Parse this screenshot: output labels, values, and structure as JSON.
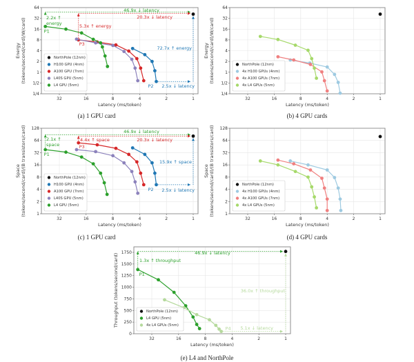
{
  "colors": {
    "northpole": "#111111",
    "h100": "#1f77b4",
    "a100": "#d62728",
    "l40s": "#8c82bc",
    "l4": "#2ca02c",
    "h100_4x": "#9ecae1",
    "a100_4x": "#f08080",
    "l4_4x": "#a6d96a",
    "l4_4x_e": "#b5d99c"
  },
  "chart_data": [
    {
      "id": "a",
      "type": "line",
      "caption": "(a) 1 GPU card",
      "xlabel": "Latency (ms/token)",
      "ylabel": "Energy\n(tokens/second/card)/W/card)",
      "ylabel_lines": [
        "Energy",
        "(tokens/second/card)/W/card)"
      ],
      "xscale": "log2-reversed",
      "yscale": "log2",
      "xlim": [
        48,
        0.9
      ],
      "ylim": [
        0.25,
        64
      ],
      "xticks": [
        {
          "v": 32,
          "label": "32"
        },
        {
          "v": 16,
          "label": "16"
        },
        {
          "v": 8,
          "label": "8"
        },
        {
          "v": 4,
          "label": "4"
        },
        {
          "v": 2,
          "label": "2"
        },
        {
          "v": 1,
          "label": "1"
        }
      ],
      "yticks": [
        {
          "v": 0.25,
          "label": "1/4"
        },
        {
          "v": 0.5,
          "label": "1/2"
        },
        {
          "v": 1,
          "label": "1"
        },
        {
          "v": 2,
          "label": "2"
        },
        {
          "v": 4,
          "label": "4"
        },
        {
          "v": 8,
          "label": "8"
        },
        {
          "v": 16,
          "label": "16"
        },
        {
          "v": 32,
          "label": "32"
        },
        {
          "v": 64,
          "label": "64"
        }
      ],
      "grid": true,
      "legend_position": "lower-left",
      "series": [
        {
          "name": "NorthPole (12nm)",
          "color": "northpole",
          "x": [
            1.0
          ],
          "y": [
            42
          ]
        },
        {
          "name": "H100 GPU (4nm)",
          "color": "h100",
          "x": [
            4.8,
            3.5,
            2.9,
            2.7,
            2.6
          ],
          "y": [
            4.6,
            3.1,
            2.0,
            1.1,
            0.55
          ]
        },
        {
          "name": "A100 GPU (7nm)",
          "color": "a100",
          "x": [
            19.5,
            12.0,
            7.4,
            5.3,
            4.3,
            3.9,
            3.6
          ],
          "y": [
            8.0,
            7.0,
            5.8,
            3.9,
            2.4,
            1.3,
            0.58
          ]
        },
        {
          "name": "L40S GPU (5nm)",
          "color": "l40s",
          "x": [
            20.5,
            12.5,
            8.0,
            6.0,
            4.9,
            4.5,
            4.2
          ],
          "y": [
            8.4,
            6.6,
            5.6,
            3.8,
            2.3,
            1.3,
            0.58
          ]
        },
        {
          "name": "L4 GPU   (5nm)",
          "color": "l4",
          "x": [
            46,
            27,
            18,
            13.3,
            11.0,
            10.5,
            9.8,
            9.2
          ],
          "y": [
            19,
            16,
            12.5,
            8.3,
            6.6,
            5.1,
            2.85,
            1.45
          ]
        }
      ],
      "annotations": [
        {
          "text": "46.9x ↓ latency",
          "color": "l4",
          "anchor": "top-center"
        },
        {
          "text": "20.3x ↓ latency",
          "color": "a100",
          "anchor": "top-right"
        },
        {
          "text": "2.2x ↑",
          "color": "l4"
        },
        {
          "text": "energy",
          "color": "l4"
        },
        {
          "text": "5.3x ↑ energy",
          "color": "a100"
        },
        {
          "text": "72.7x ↑ energy",
          "color": "h100"
        },
        {
          "text": "2.5x ↓ latency",
          "color": "h100"
        }
      ],
      "point_labels": [
        {
          "text": "P1",
          "color": "l4"
        },
        {
          "text": "P2",
          "color": "h100"
        },
        {
          "text": "P3",
          "color": "a100"
        }
      ]
    },
    {
      "id": "b",
      "type": "line",
      "caption": "(b) 4 GPU cards",
      "xlabel": "Latency (ms/token)",
      "ylabel_lines": [
        "Energy",
        "(tokens/second/card)/W/card)"
      ],
      "xscale": "log2-reversed",
      "yscale": "log2",
      "xlim": [
        48,
        0.9
      ],
      "ylim": [
        0.25,
        64
      ],
      "xticks": [
        {
          "v": 32,
          "label": "32"
        },
        {
          "v": 16,
          "label": "16"
        },
        {
          "v": 8,
          "label": "8"
        },
        {
          "v": 4,
          "label": "4"
        },
        {
          "v": 2,
          "label": "2"
        },
        {
          "v": 1,
          "label": "1"
        }
      ],
      "yticks": [
        {
          "v": 0.25,
          "label": "1/4"
        },
        {
          "v": 0.5,
          "label": "1/2"
        },
        {
          "v": 1,
          "label": "1"
        },
        {
          "v": 2,
          "label": "2"
        },
        {
          "v": 4,
          "label": "4"
        },
        {
          "v": 8,
          "label": "8"
        },
        {
          "v": 16,
          "label": "16"
        },
        {
          "v": 32,
          "label": "32"
        },
        {
          "v": 64,
          "label": "64"
        }
      ],
      "grid": true,
      "legend_position": "lower-left",
      "series": [
        {
          "name": "NorthPole (12nm)",
          "color": "northpole",
          "x": [
            1.0
          ],
          "y": [
            42
          ]
        },
        {
          "name": "4x H100 GPUs (4nm)",
          "color": "h100_4x",
          "x": [
            10.5,
            6.3,
            4.0,
            3.3,
            3.0,
            2.85
          ],
          "y": [
            2.2,
            1.8,
            1.4,
            0.87,
            0.52,
            0.26
          ]
        },
        {
          "name": "4x A100 GPUs (7nm)",
          "color": "a100_4x",
          "x": [
            14.5,
            9.6,
            6.2,
            4.6,
            4.3,
            4.0
          ],
          "y": [
            2.7,
            2.2,
            1.65,
            1.02,
            0.58,
            0.3
          ]
        },
        {
          "name": "4x L4 GPUs (5nm)",
          "color": "l4_4x",
          "x": [
            23,
            14.5,
            9.2,
            6.6,
            6.0,
            5.6,
            5.3
          ],
          "y": [
            10,
            8.2,
            5.7,
            4.1,
            2.4,
            1.3,
            0.68
          ]
        }
      ]
    },
    {
      "id": "c",
      "type": "line",
      "caption": "(c) 1 GPU card",
      "xlabel": "Latency (ms/token)",
      "ylabel_lines": [
        "Space",
        "(tokens/second/card)/(B transistors/card)"
      ],
      "xscale": "log2-reversed",
      "yscale": "log2",
      "xlim": [
        48,
        0.9
      ],
      "ylim": [
        1,
        128
      ],
      "xticks": [
        {
          "v": 32,
          "label": "32"
        },
        {
          "v": 16,
          "label": "16"
        },
        {
          "v": 8,
          "label": "8"
        },
        {
          "v": 4,
          "label": "4"
        },
        {
          "v": 2,
          "label": "2"
        },
        {
          "v": 1,
          "label": "1"
        }
      ],
      "yticks": [
        {
          "v": 1,
          "label": "1"
        },
        {
          "v": 2,
          "label": "2"
        },
        {
          "v": 4,
          "label": "4"
        },
        {
          "v": 8,
          "label": "8"
        },
        {
          "v": 16,
          "label": "16"
        },
        {
          "v": 32,
          "label": "32"
        },
        {
          "v": 64,
          "label": "64"
        },
        {
          "v": 128,
          "label": "128"
        }
      ],
      "grid": true,
      "legend_position": "lower-left",
      "series": [
        {
          "name": "NorthPole (12nm)",
          "color": "northpole",
          "x": [
            1.0
          ],
          "y": [
            82
          ]
        },
        {
          "name": "H100 GPU (4nm)",
          "color": "h100",
          "x": [
            4.8,
            3.5,
            2.9,
            2.7,
            2.6
          ],
          "y": [
            42,
            29,
            18,
            10,
            5.2
          ]
        },
        {
          "name": "A100 GPU (7nm)",
          "color": "a100",
          "x": [
            19.5,
            12.0,
            7.4,
            5.3,
            4.3,
            3.9,
            3.6
          ],
          "y": [
            56,
            50,
            41,
            29,
            19,
            10,
            5.2
          ]
        },
        {
          "name": "L40S GPU (5nm)",
          "color": "l40s",
          "x": [
            20.5,
            12.5,
            8.0,
            6.0,
            4.9,
            4.5,
            4.2
          ],
          "y": [
            38,
            34,
            27,
            18,
            11,
            6.1,
            3.2
          ]
        },
        {
          "name": "L4 GPU   (5nm)",
          "color": "l4",
          "x": [
            46,
            27,
            18,
            13.3,
            11.0,
            10.0,
            9.3
          ],
          "y": [
            38,
            33,
            25,
            17,
            10,
            5.8,
            3.0
          ]
        }
      ],
      "annotations": [
        {
          "text": "46.9x ↓ latency",
          "color": "l4"
        },
        {
          "text": "20.3x ↓ latency",
          "color": "a100"
        },
        {
          "text": "2.1x ↑",
          "color": "l4"
        },
        {
          "text": "space",
          "color": "l4"
        },
        {
          "text": "4.4x ↑ space",
          "color": "a100"
        },
        {
          "text": "15.9x ↑ space",
          "color": "h100"
        },
        {
          "text": "2.5x ↓ latency",
          "color": "h100"
        }
      ],
      "point_labels": [
        {
          "text": "P1",
          "color": "l4"
        },
        {
          "text": "P2",
          "color": "h100"
        },
        {
          "text": "P3",
          "color": "a100"
        }
      ]
    },
    {
      "id": "d",
      "type": "line",
      "caption": "(d) 4 GPU cards",
      "xlabel": "Latency (ms/token)",
      "ylabel_lines": [
        "Space",
        "(tokens/second/card)/(B transistors/card)"
      ],
      "xscale": "log2-reversed",
      "yscale": "log2",
      "xlim": [
        48,
        0.9
      ],
      "ylim": [
        1,
        128
      ],
      "xticks": [
        {
          "v": 32,
          "label": "32"
        },
        {
          "v": 16,
          "label": "16"
        },
        {
          "v": 8,
          "label": "8"
        },
        {
          "v": 4,
          "label": "4"
        },
        {
          "v": 2,
          "label": "2"
        },
        {
          "v": 1,
          "label": "1"
        }
      ],
      "yticks": [
        {
          "v": 1,
          "label": "1"
        },
        {
          "v": 2,
          "label": "2"
        },
        {
          "v": 4,
          "label": "4"
        },
        {
          "v": 8,
          "label": "8"
        },
        {
          "v": 16,
          "label": "16"
        },
        {
          "v": 32,
          "label": "32"
        },
        {
          "v": 64,
          "label": "64"
        },
        {
          "v": 128,
          "label": "128"
        }
      ],
      "grid": true,
      "legend_position": "lower-left",
      "series": [
        {
          "name": "NorthPole (12nm)",
          "color": "northpole",
          "x": [
            1.0
          ],
          "y": [
            80
          ]
        },
        {
          "name": "4x H100 GPUs (4nm)",
          "color": "h100_4x",
          "x": [
            10.5,
            6.6,
            4.0,
            3.3,
            3.0,
            2.85,
            2.8
          ],
          "y": [
            20,
            16,
            12,
            7.8,
            4.3,
            2.3,
            1.2
          ]
        },
        {
          "name": "4x A100 GPUs (7nm)",
          "color": "a100_4x",
          "x": [
            14.5,
            9.6,
            6.2,
            4.6,
            4.3,
            4.0,
            4.0
          ],
          "y": [
            21,
            17,
            12,
            7.5,
            4.3,
            2.3,
            1.2
          ]
        },
        {
          "name": "4x L4 GPUs (5nm)",
          "color": "l4_4x",
          "x": [
            23,
            14.5,
            9.2,
            6.6,
            6.0,
            5.6,
            5.3
          ],
          "y": [
            20,
            16,
            11,
            8,
            4.6,
            2.6,
            1.4
          ]
        }
      ]
    },
    {
      "id": "e",
      "type": "line",
      "caption": "(e) L4 and NorthPole",
      "xlabel": "Latency (ms/token)",
      "ylabel_lines": [
        "Throughput (tokens/second/card)"
      ],
      "xscale": "log2-reversed",
      "yscale": "linear",
      "xlim": [
        48,
        0.9
      ],
      "ylim": [
        0,
        1800
      ],
      "xticks": [
        {
          "v": 32,
          "label": "32"
        },
        {
          "v": 16,
          "label": "16"
        },
        {
          "v": 8,
          "label": "8"
        },
        {
          "v": 4,
          "label": "4"
        },
        {
          "v": 2,
          "label": "2"
        },
        {
          "v": 1,
          "label": "1"
        }
      ],
      "yticks": [
        {
          "v": 0,
          "label": "0"
        },
        {
          "v": 250,
          "label": "250"
        },
        {
          "v": 500,
          "label": "500"
        },
        {
          "v": 750,
          "label": "750"
        },
        {
          "v": 1000,
          "label": "1000"
        },
        {
          "v": 1250,
          "label": "1250"
        },
        {
          "v": 1500,
          "label": "1500"
        },
        {
          "v": 1750,
          "label": "1750"
        }
      ],
      "grid": true,
      "legend_position": "lower-left",
      "series": [
        {
          "name": "NorthPole (12nm)",
          "color": "northpole",
          "x": [
            1.0
          ],
          "y": [
            1770
          ]
        },
        {
          "name": "L4 GPU   (5nm)",
          "color": "l4",
          "x": [
            46,
            27,
            18,
            13.3,
            11.0,
            10.0,
            9.3
          ],
          "y": [
            1380,
            1160,
            890,
            600,
            360,
            200,
            110
          ]
        },
        {
          "name": "4x L4 GPUs (5nm)",
          "color": "l4_4x_e",
          "x": [
            23,
            14.0,
            10.0,
            7.2,
            6.1,
            5.6,
            5.3
          ],
          "y": [
            730,
            560,
            410,
            300,
            180,
            100,
            50
          ]
        }
      ],
      "annotations": [
        {
          "text": "46.9x ↓ latency",
          "color": "l4"
        },
        {
          "text": "1.3x ↑ throughput",
          "color": "l4"
        },
        {
          "text": "36.0x ↑ throughput",
          "color": "l4_4x_e"
        },
        {
          "text": "5.1x ↓ latency",
          "color": "l4_4x_e"
        }
      ],
      "point_labels": [
        {
          "text": "P1",
          "color": "l4"
        },
        {
          "text": "P4",
          "color": "l4_4x_e"
        }
      ]
    }
  ]
}
